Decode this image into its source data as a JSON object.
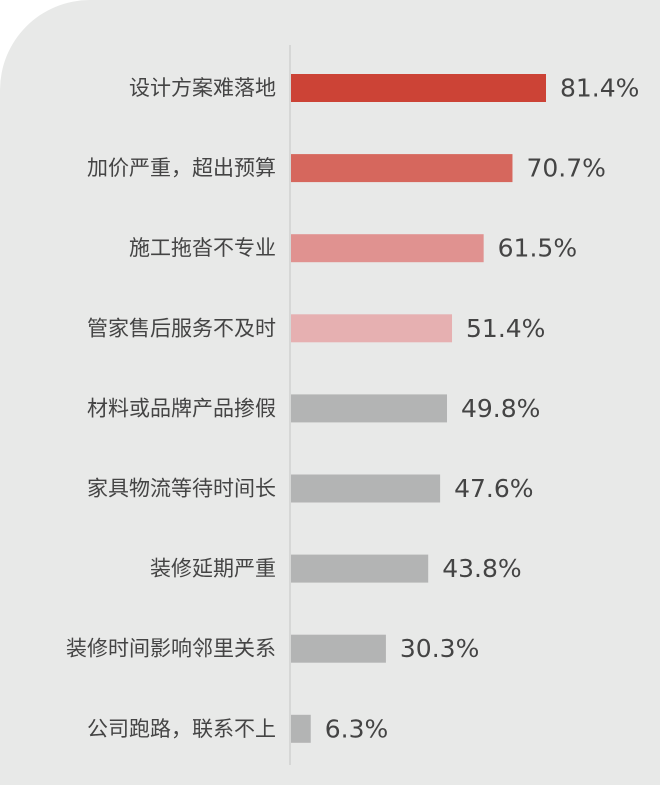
{
  "chart_data": {
    "type": "bar",
    "orientation": "horizontal",
    "title": "",
    "xlabel": "",
    "ylabel": "",
    "xlim": [
      0,
      81.4
    ],
    "grid": false,
    "legend": "none",
    "categories": [
      "设计方案难落地",
      "加价严重，超出预算",
      "施工拖沓不专业",
      "管家售后服务不及时",
      "材料或品牌产品掺假",
      "家具物流等待时间长",
      "装修延期严重",
      "装修时间影响邻里关系",
      "公司跑路，联系不上"
    ],
    "values": [
      81.4,
      70.7,
      61.5,
      51.4,
      49.8,
      47.6,
      43.8,
      30.3,
      6.3
    ],
    "value_labels": [
      "81.4%",
      "70.7%",
      "61.5%",
      "51.4%",
      "49.8%",
      "47.6%",
      "43.8%",
      "30.3%",
      "6.3%"
    ],
    "bar_colors": [
      "#cc4336",
      "#d6675d",
      "#e09290",
      "#e6b0b1",
      "#b3b4b4",
      "#b3b4b4",
      "#b3b4b4",
      "#b3b4b4",
      "#b3b4b4"
    ],
    "colors": {
      "background": "#e8e9e8",
      "axis": "#d0d1d0",
      "label_text": "#444444"
    }
  }
}
